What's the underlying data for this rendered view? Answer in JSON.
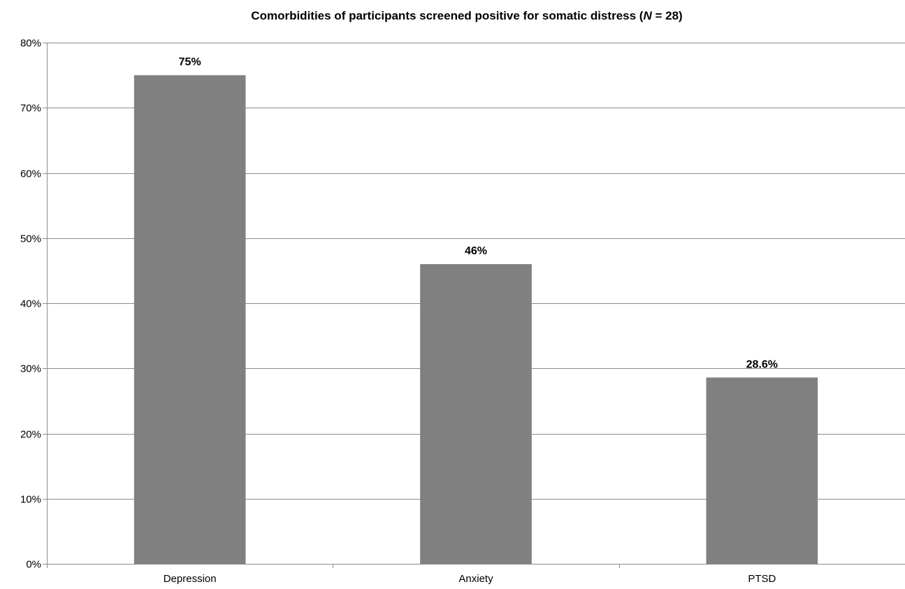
{
  "chart_data": {
    "type": "bar",
    "title": {
      "prefix": "Comorbidities of participants screened positive for somatic distress  (",
      "italic": "N",
      "suffix": " = 28)"
    },
    "categories": [
      "Depression",
      "Anxiety",
      "PTSD"
    ],
    "values": [
      75,
      46,
      28.6
    ],
    "data_labels": [
      "75%",
      "46%",
      "28.6%"
    ],
    "yticks": [
      "0%",
      "10%",
      "20%",
      "30%",
      "40%",
      "50%",
      "60%",
      "70%",
      "80%"
    ],
    "ylim": [
      0,
      80
    ],
    "xlabel": "",
    "ylabel": "",
    "grid": true,
    "legend": "none",
    "bar_color": "#808080"
  }
}
